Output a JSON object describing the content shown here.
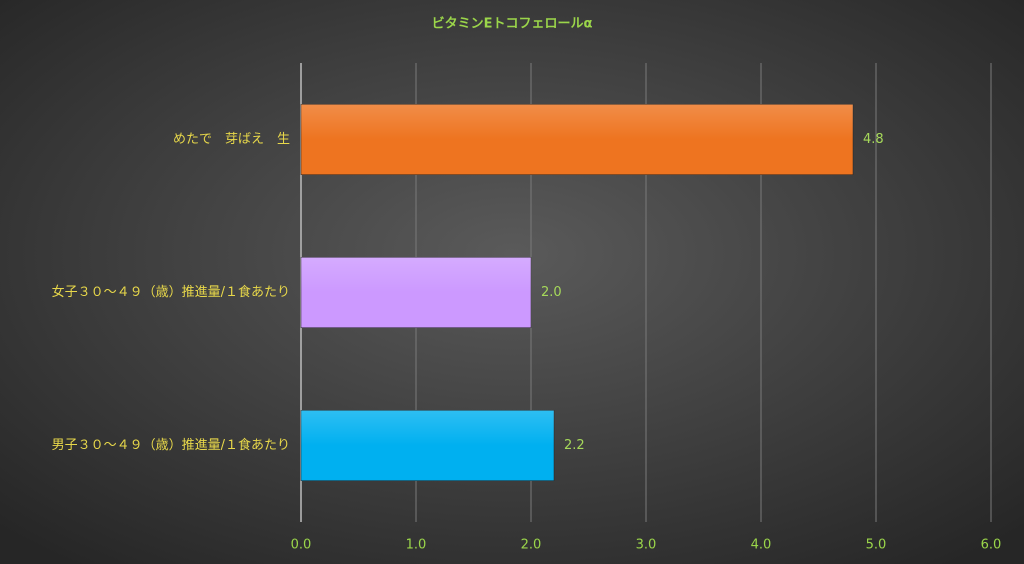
{
  "chart_data": {
    "type": "bar",
    "orientation": "horizontal",
    "title": "ビタミンEトコフェロールα",
    "categories": [
      "めたで　芽ばえ　生",
      "女子３０～４９（歳）推進量/１食あたり",
      "男子３０～４９（歳）推進量/１食あたり"
    ],
    "values": [
      4.8,
      2.0,
      2.2
    ],
    "value_labels": [
      "4.8",
      "2.0",
      "2.2"
    ],
    "colors": [
      "#ee7420",
      "#cc99ff",
      "#00b0f0"
    ],
    "xlim": [
      0,
      6
    ],
    "xticks": [
      {
        "value": 0,
        "label": "0.0"
      },
      {
        "value": 1,
        "label": "1.0"
      },
      {
        "value": 2,
        "label": "2.0"
      },
      {
        "value": 3,
        "label": "3.0"
      },
      {
        "value": 4,
        "label": "4.0"
      },
      {
        "value": 5,
        "label": "5.0"
      },
      {
        "value": 6,
        "label": "6.0"
      }
    ],
    "grid": true
  }
}
